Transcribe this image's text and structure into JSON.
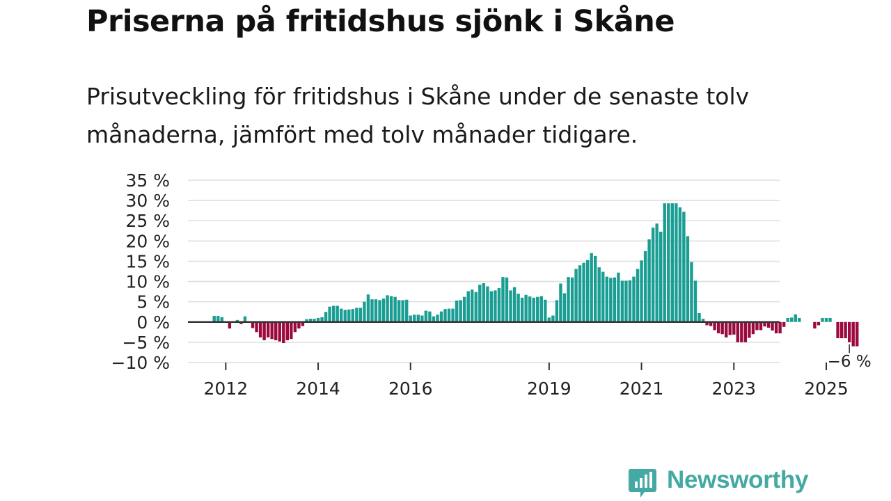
{
  "header": {
    "title": "Priserna på fritidshus sjönk i Skåne",
    "subtitle": "Prisutveckling för fritidshus i Skåne under de senaste tolv månaderna, jämfört med tolv månader tidigare."
  },
  "logo": {
    "text": "Newsworthy"
  },
  "colors": {
    "positive": "#1a9e93",
    "negative": "#9b0a3f",
    "grid": "#dddddd",
    "zero": "#333333",
    "text": "#222222"
  },
  "chart_data": {
    "type": "bar",
    "title": "Priserna på fritidshus sjönk i Skåne",
    "xlabel": "",
    "ylabel": "",
    "ylim": [
      -10,
      35
    ],
    "yticks": [
      35,
      30,
      25,
      20,
      15,
      10,
      5,
      0,
      -5,
      -10
    ],
    "ytick_labels": [
      "35 %",
      "30 %",
      "25 %",
      "20 %",
      "15 %",
      "10 %",
      "5 %",
      "0 %",
      "−5 %",
      "−10 %"
    ],
    "xticks": [
      {
        "label": "2012",
        "index": 4
      },
      {
        "label": "2014",
        "index": 28
      },
      {
        "label": "2016",
        "index": 52
      },
      {
        "label": "2019",
        "index": 88
      },
      {
        "label": "2021",
        "index": 112
      },
      {
        "label": "2023",
        "index": 136
      },
      {
        "label": "2025",
        "index": 160
      }
    ],
    "annotation": {
      "label": "−6 %",
      "index": 166
    },
    "start": "2011-09",
    "values": [
      0,
      1.5,
      1.5,
      1.2,
      0,
      -1.6,
      0,
      0.5,
      -0.5,
      1.4,
      0,
      -1.5,
      -2.5,
      -3.8,
      -4.5,
      -3.8,
      -4.2,
      -4.5,
      -4.8,
      -5.2,
      -4.5,
      -4.2,
      -2.5,
      -1.6,
      -1,
      0.7,
      0.8,
      0.8,
      1,
      1.2,
      2.5,
      3.8,
      4,
      4,
      3.3,
      3,
      3.1,
      3.2,
      3.5,
      3.5,
      5,
      6.8,
      5.6,
      5.6,
      5.4,
      5.8,
      6.6,
      6.4,
      6.2,
      5.4,
      5.4,
      5.5,
      1.6,
      1.8,
      1.8,
      1.6,
      2.8,
      2.6,
      1.4,
      1.8,
      2.6,
      3.2,
      3.3,
      3.3,
      5.3,
      5.4,
      6.2,
      7.6,
      8,
      7.4,
      9.2,
      9.6,
      8.8,
      7.6,
      7.8,
      8.4,
      11.1,
      11,
      7.8,
      8.6,
      7,
      6,
      6.7,
      6.3,
      6,
      6.2,
      6.4,
      5.5,
      1.1,
      1.6,
      5.4,
      9.5,
      7.1,
      11.1,
      11,
      13.1,
      14,
      14.6,
      15.3,
      17,
      16.3,
      13.5,
      12.4,
      11.2,
      10.9,
      11,
      12.2,
      10.2,
      10.2,
      10.3,
      11.2,
      13.1,
      15.2,
      17.5,
      20.4,
      23.3,
      24.3,
      22.3,
      29.3,
      29.3,
      29.3,
      29.3,
      28.3,
      27.2,
      21.2,
      14.8,
      10.2,
      2.2,
      0.8,
      -0.8,
      -1,
      -2,
      -2.8,
      -3,
      -3.8,
      -3.2,
      -3.1,
      -5,
      -5,
      -5,
      -3.9,
      -3,
      -2,
      -2,
      -1.1,
      -1.4,
      -2.1,
      -2.8,
      -2.8,
      -1.2,
      1,
      1.1,
      1.9,
      1,
      0,
      0,
      0,
      -1.6,
      -0.8,
      1,
      1,
      1,
      0,
      -4,
      -4,
      -4,
      -5,
      -6,
      -6
    ]
  }
}
